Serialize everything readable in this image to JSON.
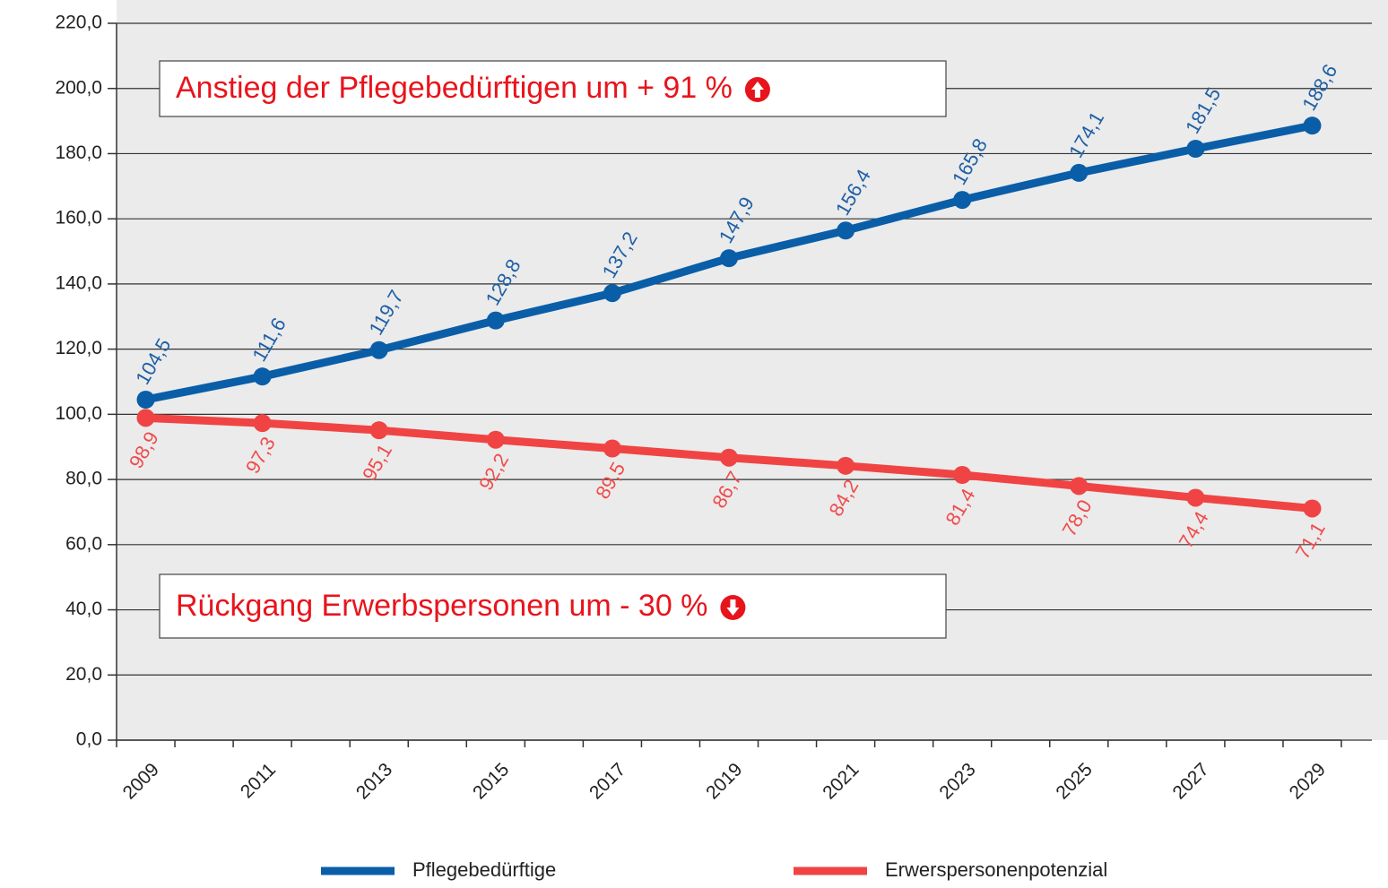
{
  "chart_data": {
    "type": "line",
    "annotations": [
      "Anstieg der Pflegebedürftigen um + 91 %",
      "Rückgang Erwerbspersonen um - 30 %"
    ],
    "x": [
      2009,
      2011,
      2013,
      2015,
      2017,
      2019,
      2021,
      2023,
      2025,
      2027,
      2029
    ],
    "xlim": [
      2008.5,
      2029.5
    ],
    "xticks": [
      2009,
      2011,
      2013,
      2015,
      2017,
      2019,
      2021,
      2023,
      2025,
      2027,
      2029
    ],
    "ylim": [
      0,
      220
    ],
    "yticks": [
      {
        "value": 0,
        "label": "0,0"
      },
      {
        "value": 20,
        "label": "20,0"
      },
      {
        "value": 40,
        "label": "40,0"
      },
      {
        "value": 60,
        "label": "60,0"
      },
      {
        "value": 80,
        "label": "80,0"
      },
      {
        "value": 100,
        "label": "100,0"
      },
      {
        "value": 120,
        "label": "120,0"
      },
      {
        "value": 140,
        "label": "140,0"
      },
      {
        "value": 160,
        "label": "160,0"
      },
      {
        "value": 180,
        "label": "180,0"
      },
      {
        "value": 200,
        "label": "200,0"
      },
      {
        "value": 220,
        "label": "220,0"
      }
    ],
    "grid": true,
    "legend": "bottom",
    "series": [
      {
        "name": "Pflegebedürftige",
        "color": "#0a5ea8",
        "label_color": "#1f5fa6",
        "label_position": "above",
        "values": [
          104.5,
          111.6,
          119.7,
          128.8,
          137.2,
          147.9,
          156.4,
          165.8,
          174.1,
          181.5,
          188.6
        ],
        "value_labels": [
          "104,5",
          "111,6",
          "119,7",
          "128,8",
          "137,2",
          "147,9",
          "156,4",
          "165,8",
          "174,1",
          "181,5",
          "188,6"
        ]
      },
      {
        "name": "Erwerspersonenpotenzial",
        "color": "#f04444",
        "label_color": "#f04b4b",
        "label_position": "below",
        "values": [
          98.9,
          97.3,
          95.1,
          92.2,
          89.5,
          86.7,
          84.2,
          81.4,
          78.0,
          74.4,
          71.1
        ],
        "value_labels": [
          "98,9",
          "97,3",
          "95,1",
          "92,2",
          "89,5",
          "86,7",
          "84,2",
          "81,4",
          "78,0",
          "74,4",
          "71,1"
        ]
      }
    ]
  }
}
